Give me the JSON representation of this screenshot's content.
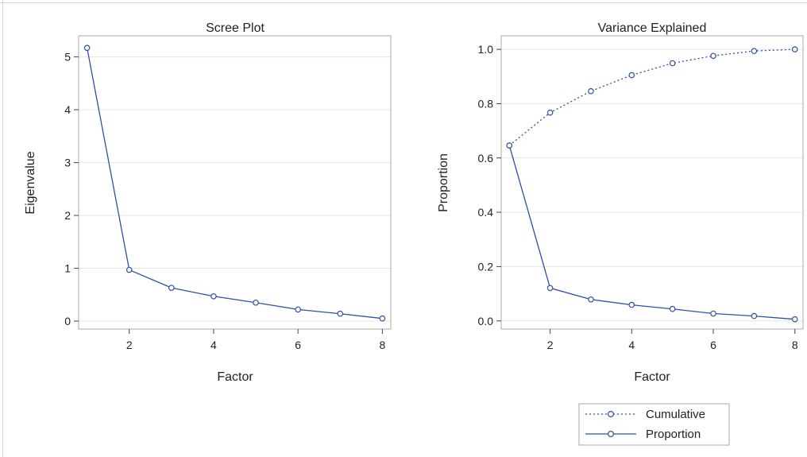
{
  "chart_data": [
    {
      "type": "line",
      "title": "Scree Plot",
      "xlabel": "Factor",
      "ylabel": "Eigenvalue",
      "xlim": [
        0.8,
        8.2
      ],
      "ylim": [
        -0.15,
        5.4
      ],
      "x_ticks": [
        2,
        4,
        6,
        8
      ],
      "y_ticks": [
        0,
        1,
        2,
        3,
        4,
        5
      ],
      "grid": "horizontal",
      "series": [
        {
          "name": "",
          "style": "solid",
          "x": [
            1,
            2,
            3,
            4,
            5,
            6,
            7,
            8
          ],
          "values": [
            5.17,
            0.97,
            0.63,
            0.47,
            0.35,
            0.22,
            0.14,
            0.05
          ]
        }
      ]
    },
    {
      "type": "line",
      "title": "Variance Explained",
      "xlabel": "Factor",
      "ylabel": "Proportion",
      "xlim": [
        0.8,
        8.2
      ],
      "ylim": [
        -0.03,
        1.05
      ],
      "x_ticks": [
        2,
        4,
        6,
        8
      ],
      "y_ticks": [
        "0.0",
        "0.2",
        "0.4",
        "0.6",
        "0.8",
        "1.0"
      ],
      "grid": "horizontal",
      "legend_position": "bottom",
      "series": [
        {
          "name": "Cumulative",
          "style": "dotted",
          "x": [
            1,
            2,
            3,
            4,
            5,
            6,
            7,
            8
          ],
          "values": [
            0.646,
            0.767,
            0.846,
            0.905,
            0.949,
            0.976,
            0.994,
            1.0
          ]
        },
        {
          "name": "Proportion",
          "style": "solid",
          "x": [
            1,
            2,
            3,
            4,
            5,
            6,
            7,
            8
          ],
          "values": [
            0.646,
            0.121,
            0.079,
            0.059,
            0.044,
            0.027,
            0.018,
            0.006
          ]
        }
      ]
    }
  ],
  "colors": {
    "series": "#2f4fa8",
    "grid": "#e6e6e6",
    "frame": "#a9a9a9",
    "text": "#222222"
  }
}
